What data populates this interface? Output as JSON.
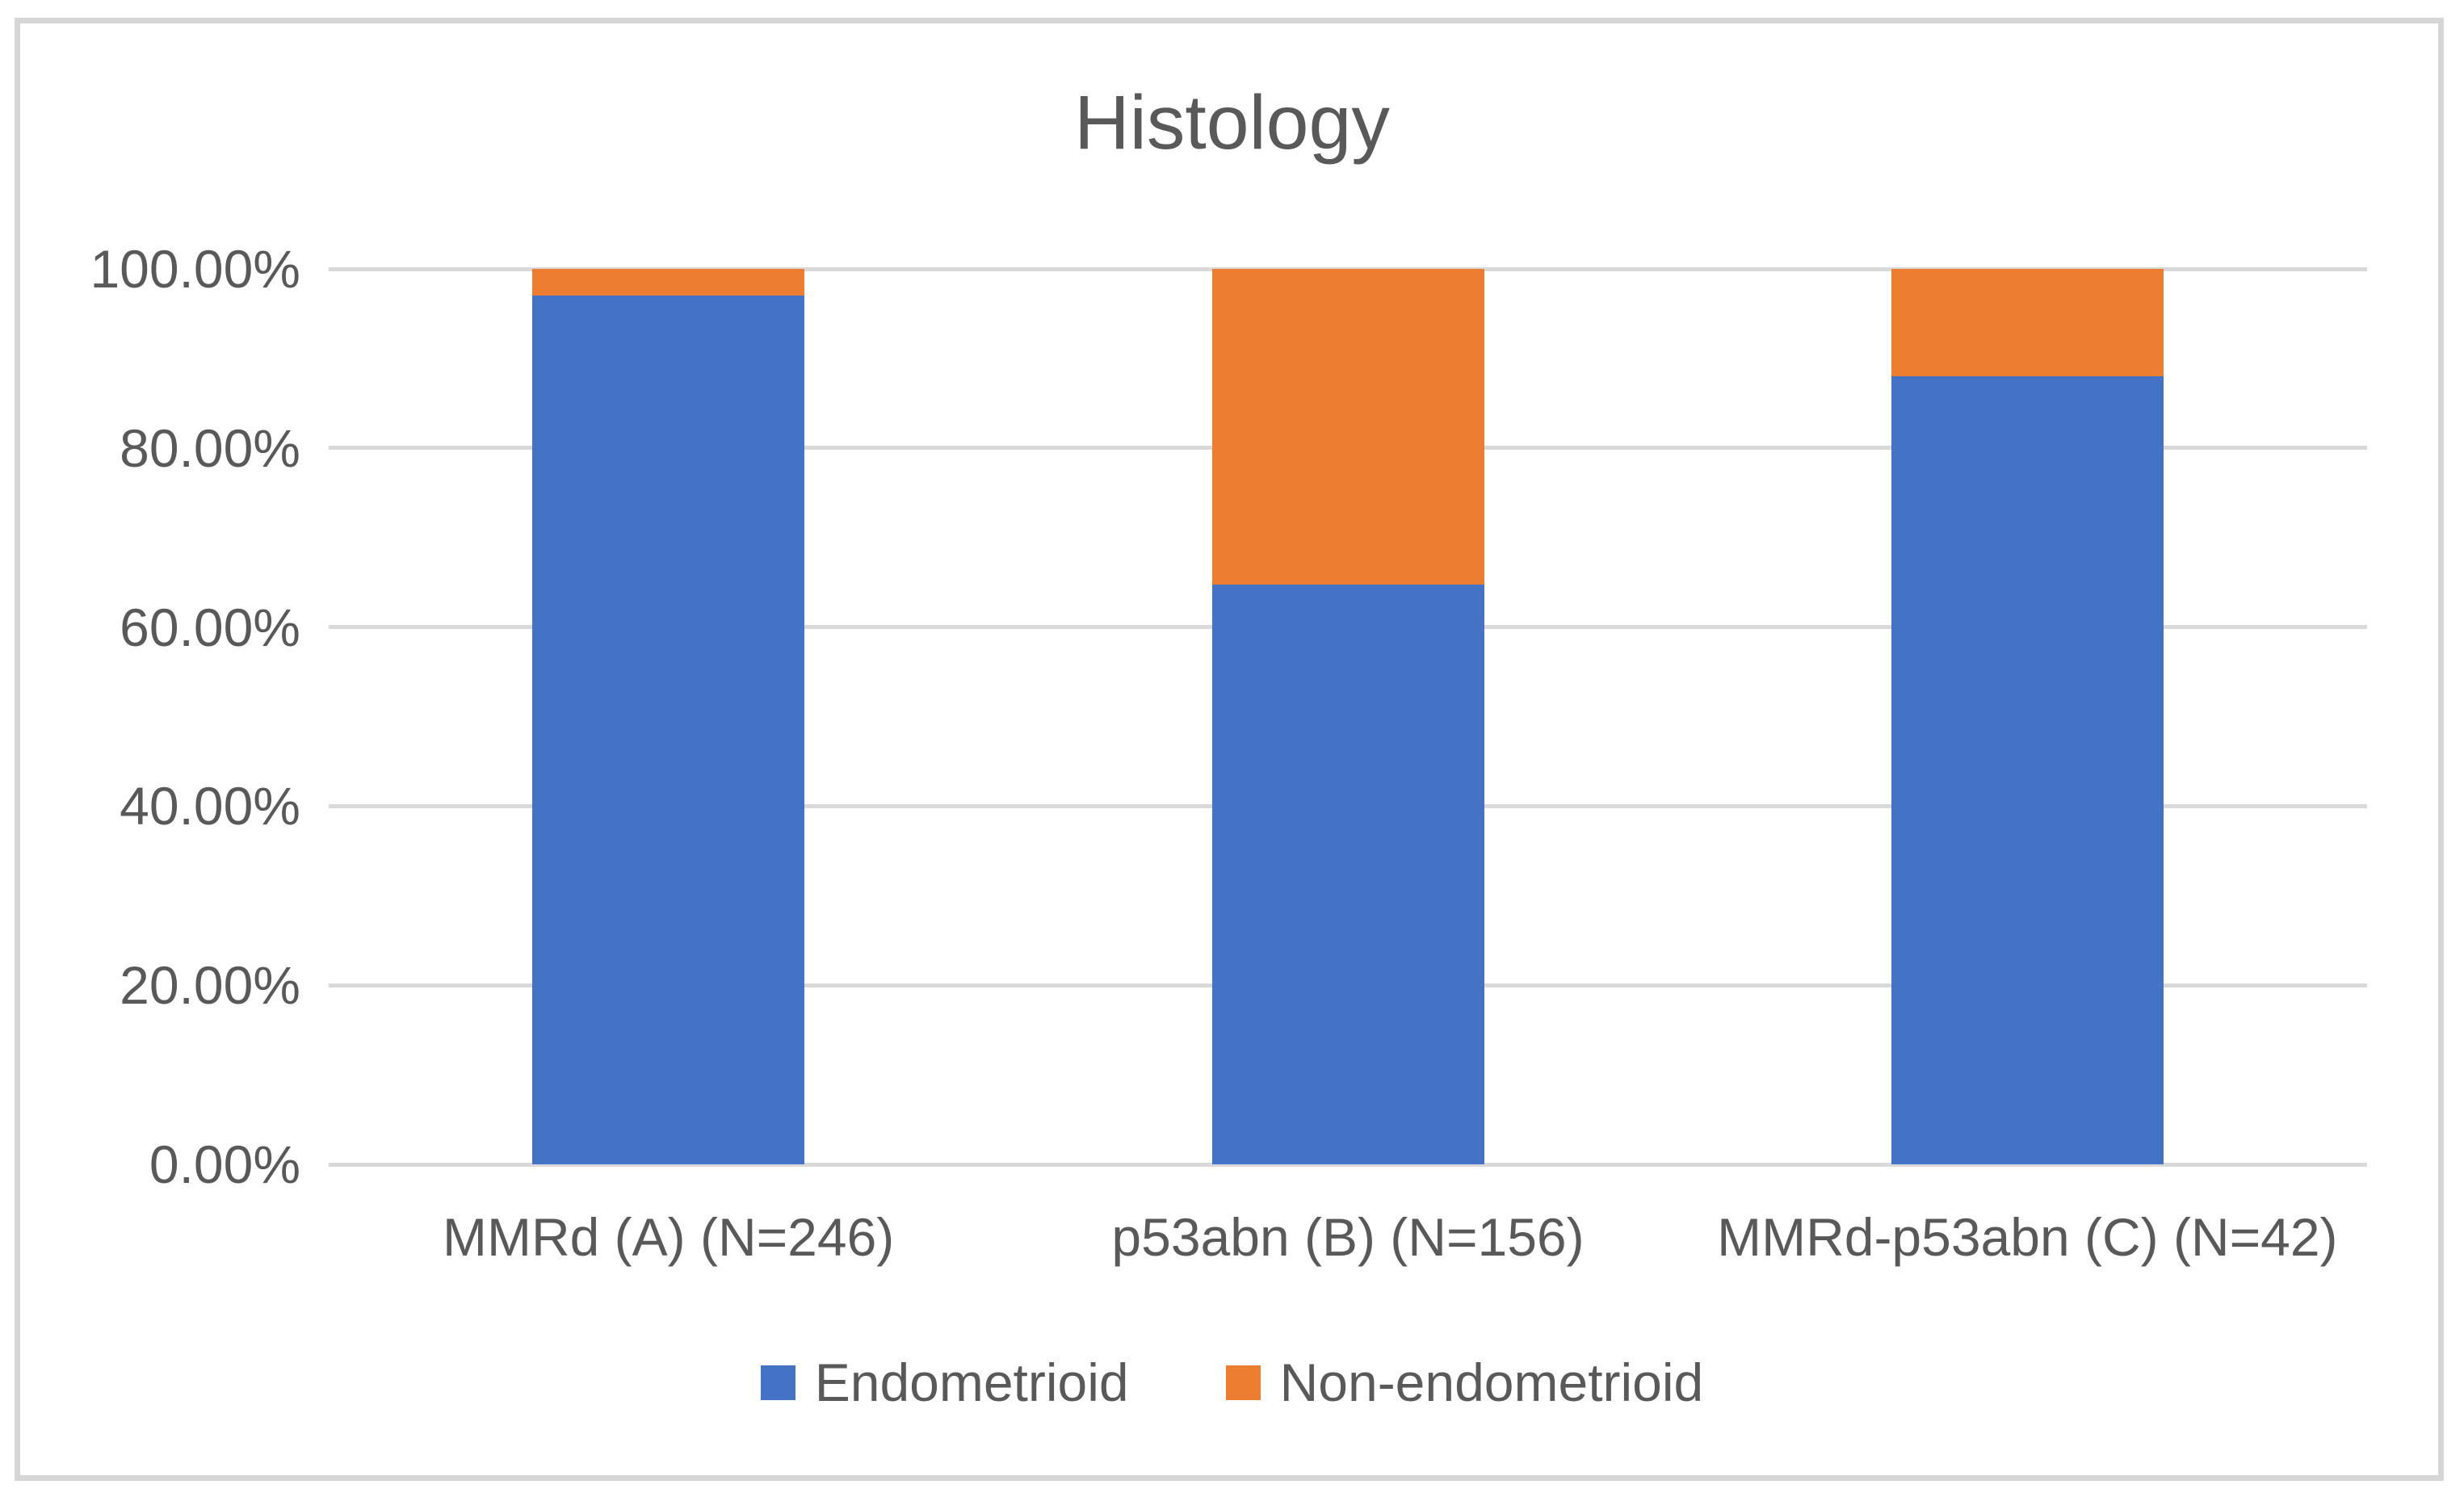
{
  "chart_data": {
    "type": "bar",
    "stacked": true,
    "title": "Histology",
    "categories": [
      "MMRd (A) (N=246)",
      "p53abn (B) (N=156)",
      "MMRd-p53abn (C) (N=42)"
    ],
    "series": [
      {
        "name": "Endometrioid",
        "color": "#4472C4",
        "values": [
          97.0,
          64.7,
          88.0
        ]
      },
      {
        "name": "Non-endometrioid",
        "color": "#ED7D31",
        "values": [
          3.0,
          35.3,
          12.0
        ]
      }
    ],
    "xlabel": "",
    "ylabel": "",
    "ylim": [
      0,
      100
    ],
    "ytick_values": [
      0,
      20,
      40,
      60,
      80,
      100
    ],
    "ytick_labels": [
      "0.00%",
      "20.00%",
      "40.00%",
      "60.00%",
      "80.00%",
      "100.00%"
    ],
    "grid": true,
    "legend_position": "bottom",
    "colors": {
      "text": "#595959",
      "gridline": "#D9D9D9",
      "figure_border": "#D6D6D6",
      "background": "#FFFFFF"
    }
  }
}
